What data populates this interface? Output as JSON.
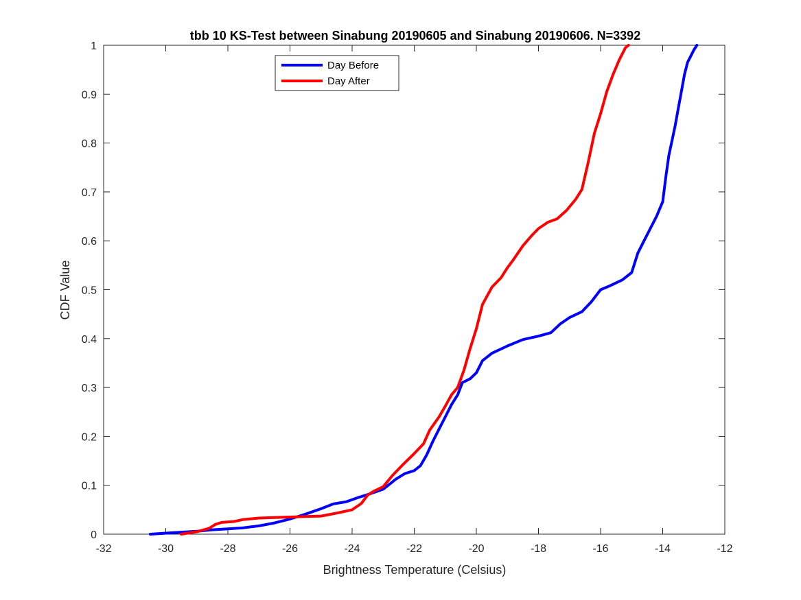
{
  "chart_data": {
    "type": "line",
    "title": "tbb 10 KS-Test between Sinabung 20190605 and Sinabung 20190606. N=3392",
    "xlabel": "Brightness Temperature (Celsius)",
    "ylabel": "CDF Value",
    "xlim": [
      -32,
      -12
    ],
    "ylim": [
      0,
      1
    ],
    "xticks": [
      -32,
      -30,
      -28,
      -26,
      -24,
      -22,
      -20,
      -18,
      -16,
      -14,
      -12
    ],
    "yticks": [
      0,
      0.1,
      0.2,
      0.3,
      0.4,
      0.5,
      0.6,
      0.7,
      0.8,
      0.9,
      1
    ],
    "xtick_labels": [
      "-32",
      "-30",
      "-28",
      "-26",
      "-24",
      "-22",
      "-20",
      "-18",
      "-16",
      "-14",
      "-12"
    ],
    "ytick_labels": [
      "0",
      "0.1",
      "0.2",
      "0.3",
      "0.4",
      "0.5",
      "0.6",
      "0.7",
      "0.8",
      "0.9",
      "1"
    ],
    "grid": false,
    "legend_position": "top-left",
    "series": [
      {
        "name": "Day Before",
        "color": "#0000ff",
        "points": [
          [
            -30.5,
            0.0
          ],
          [
            -29.5,
            0.004
          ],
          [
            -29.0,
            0.006
          ],
          [
            -28.5,
            0.009
          ],
          [
            -28.0,
            0.011
          ],
          [
            -27.5,
            0.013
          ],
          [
            -27.0,
            0.017
          ],
          [
            -26.5,
            0.023
          ],
          [
            -26.0,
            0.031
          ],
          [
            -25.5,
            0.041
          ],
          [
            -25.0,
            0.052
          ],
          [
            -24.6,
            0.062
          ],
          [
            -24.2,
            0.066
          ],
          [
            -23.8,
            0.075
          ],
          [
            -23.4,
            0.083
          ],
          [
            -23.0,
            0.092
          ],
          [
            -22.8,
            0.102
          ],
          [
            -22.6,
            0.112
          ],
          [
            -22.3,
            0.124
          ],
          [
            -22.0,
            0.13
          ],
          [
            -21.8,
            0.14
          ],
          [
            -21.6,
            0.162
          ],
          [
            -21.4,
            0.19
          ],
          [
            -21.2,
            0.215
          ],
          [
            -21.0,
            0.24
          ],
          [
            -20.8,
            0.265
          ],
          [
            -20.6,
            0.285
          ],
          [
            -20.45,
            0.31
          ],
          [
            -20.2,
            0.318
          ],
          [
            -20.0,
            0.33
          ],
          [
            -19.8,
            0.355
          ],
          [
            -19.5,
            0.37
          ],
          [
            -19.0,
            0.385
          ],
          [
            -18.5,
            0.398
          ],
          [
            -18.0,
            0.405
          ],
          [
            -17.6,
            0.412
          ],
          [
            -17.3,
            0.43
          ],
          [
            -17.0,
            0.443
          ],
          [
            -16.6,
            0.455
          ],
          [
            -16.3,
            0.475
          ],
          [
            -16.0,
            0.5
          ],
          [
            -15.7,
            0.508
          ],
          [
            -15.3,
            0.52
          ],
          [
            -15.0,
            0.535
          ],
          [
            -14.8,
            0.575
          ],
          [
            -14.6,
            0.6
          ],
          [
            -14.4,
            0.625
          ],
          [
            -14.2,
            0.65
          ],
          [
            -14.0,
            0.68
          ],
          [
            -13.9,
            0.73
          ],
          [
            -13.8,
            0.775
          ],
          [
            -13.7,
            0.805
          ],
          [
            -13.6,
            0.835
          ],
          [
            -13.5,
            0.87
          ],
          [
            -13.4,
            0.905
          ],
          [
            -13.3,
            0.94
          ],
          [
            -13.2,
            0.965
          ],
          [
            -13.0,
            0.99
          ],
          [
            -12.9,
            1.0
          ]
        ]
      },
      {
        "name": "Day After",
        "color": "#ff0000",
        "points": [
          [
            -29.5,
            0.0
          ],
          [
            -29.0,
            0.005
          ],
          [
            -28.6,
            0.012
          ],
          [
            -28.4,
            0.02
          ],
          [
            -28.2,
            0.024
          ],
          [
            -27.8,
            0.026
          ],
          [
            -27.5,
            0.03
          ],
          [
            -27.0,
            0.033
          ],
          [
            -26.5,
            0.034
          ],
          [
            -26.0,
            0.035
          ],
          [
            -25.5,
            0.036
          ],
          [
            -25.0,
            0.037
          ],
          [
            -24.5,
            0.043
          ],
          [
            -24.0,
            0.05
          ],
          [
            -23.7,
            0.063
          ],
          [
            -23.5,
            0.08
          ],
          [
            -23.3,
            0.088
          ],
          [
            -23.0,
            0.097
          ],
          [
            -22.7,
            0.12
          ],
          [
            -22.4,
            0.14
          ],
          [
            -22.0,
            0.165
          ],
          [
            -21.7,
            0.185
          ],
          [
            -21.5,
            0.213
          ],
          [
            -21.2,
            0.24
          ],
          [
            -21.0,
            0.262
          ],
          [
            -20.8,
            0.285
          ],
          [
            -20.6,
            0.3
          ],
          [
            -20.4,
            0.335
          ],
          [
            -20.2,
            0.38
          ],
          [
            -20.0,
            0.42
          ],
          [
            -19.8,
            0.47
          ],
          [
            -19.5,
            0.505
          ],
          [
            -19.2,
            0.525
          ],
          [
            -19.0,
            0.545
          ],
          [
            -18.8,
            0.562
          ],
          [
            -18.5,
            0.59
          ],
          [
            -18.2,
            0.612
          ],
          [
            -18.0,
            0.625
          ],
          [
            -17.7,
            0.638
          ],
          [
            -17.4,
            0.645
          ],
          [
            -17.1,
            0.662
          ],
          [
            -16.8,
            0.685
          ],
          [
            -16.6,
            0.705
          ],
          [
            -16.4,
            0.76
          ],
          [
            -16.2,
            0.82
          ],
          [
            -16.0,
            0.86
          ],
          [
            -15.8,
            0.905
          ],
          [
            -15.6,
            0.94
          ],
          [
            -15.4,
            0.97
          ],
          [
            -15.2,
            0.995
          ],
          [
            -15.1,
            1.0
          ]
        ]
      }
    ]
  }
}
